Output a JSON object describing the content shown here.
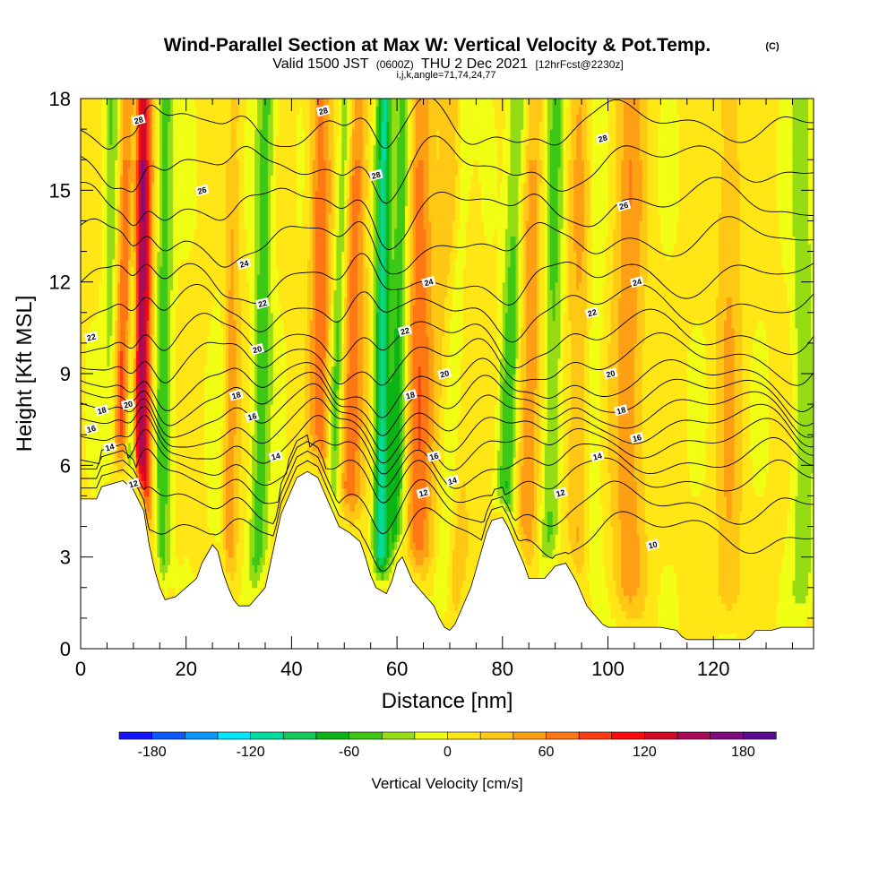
{
  "chart_data": {
    "type": "heatmap",
    "title": "Wind-Parallel Section at Max W: Vertical Velocity & Pot.Temp.",
    "title_mark": "(C)",
    "subtitle_parts": [
      "Valid 1500 JST",
      "(0600Z)",
      "THU 2 Dec 2021",
      "[12hrFcst@2230z]"
    ],
    "subtitle2": "i,j,k,angle=71,74,24,77",
    "xlabel": "Distance [nm]",
    "ylabel": "Height [Kft MSL]",
    "xlim": [
      0,
      139
    ],
    "ylim": [
      0,
      18
    ],
    "x_ticks": [
      0,
      20,
      40,
      60,
      80,
      100,
      120
    ],
    "x_tick_labels": [
      "0",
      "20",
      "40",
      "60",
      "80",
      "100",
      "120"
    ],
    "y_ticks": [
      0,
      3,
      6,
      9,
      12,
      15,
      18
    ],
    "y_tick_labels": [
      "0",
      "3",
      "6",
      "9",
      "12",
      "15",
      "18"
    ],
    "colorbar": {
      "label": "Vertical Velocity [cm/s]",
      "min": -200,
      "max": 200,
      "tick_values": [
        -180,
        -120,
        -60,
        0,
        60,
        120,
        180
      ],
      "tick_labels": [
        "-180",
        "-120",
        "-60",
        "0",
        "60",
        "120",
        "180"
      ],
      "colors": [
        "#1414ff",
        "#0a5aff",
        "#0a96ff",
        "#00e6ff",
        "#00dca0",
        "#14c85a",
        "#0ab414",
        "#3cc814",
        "#96dc14",
        "#f0ff14",
        "#ffe614",
        "#ffc814",
        "#ffa014",
        "#ff7814",
        "#ff3c14",
        "#ff0a0a",
        "#d20a28",
        "#aa0a5a",
        "#800a80",
        "#5a0a8c"
      ]
    },
    "terrain_kft": [
      [
        0,
        4.9
      ],
      [
        3,
        4.9
      ],
      [
        4,
        5.3
      ],
      [
        8,
        5.5
      ],
      [
        10,
        5.2
      ],
      [
        12,
        4.5
      ],
      [
        13,
        3.4
      ],
      [
        14,
        2.6
      ],
      [
        15,
        2.0
      ],
      [
        16,
        1.6
      ],
      [
        18,
        1.7
      ],
      [
        20,
        2.0
      ],
      [
        22,
        2.3
      ],
      [
        23,
        2.8
      ],
      [
        25,
        3.4
      ],
      [
        26,
        3.2
      ],
      [
        27,
        2.5
      ],
      [
        28,
        2.0
      ],
      [
        29,
        1.6
      ],
      [
        30,
        1.4
      ],
      [
        32,
        1.4
      ],
      [
        33,
        1.6
      ],
      [
        35,
        2.0
      ],
      [
        36,
        2.8
      ],
      [
        37,
        3.6
      ],
      [
        38,
        4.4
      ],
      [
        40,
        5.2
      ],
      [
        41,
        5.6
      ],
      [
        43,
        5.8
      ],
      [
        45,
        5.6
      ],
      [
        46,
        5.2
      ],
      [
        47,
        4.8
      ],
      [
        48,
        4.4
      ],
      [
        49,
        4.0
      ],
      [
        51,
        3.8
      ],
      [
        53,
        3.5
      ],
      [
        54,
        3.0
      ],
      [
        55,
        2.4
      ],
      [
        56,
        2.0
      ],
      [
        58,
        1.8
      ],
      [
        59,
        2.2
      ],
      [
        60,
        2.8
      ],
      [
        61,
        3.0
      ],
      [
        62,
        2.6
      ],
      [
        63,
        2.2
      ],
      [
        64,
        2.0
      ],
      [
        65,
        1.8
      ],
      [
        66,
        1.6
      ],
      [
        67,
        1.4
      ],
      [
        68,
        1.0
      ],
      [
        69,
        0.7
      ],
      [
        70,
        0.6
      ],
      [
        71,
        0.8
      ],
      [
        72,
        1.2
      ],
      [
        73,
        1.6
      ],
      [
        74,
        2.0
      ],
      [
        75,
        2.6
      ],
      [
        76,
        3.2
      ],
      [
        77,
        3.8
      ],
      [
        78,
        4.2
      ],
      [
        80,
        4.3
      ],
      [
        81,
        4.0
      ],
      [
        82,
        3.6
      ],
      [
        83,
        3.2
      ],
      [
        84,
        2.8
      ],
      [
        85,
        2.3
      ],
      [
        88,
        2.3
      ],
      [
        89,
        2.5
      ],
      [
        90,
        2.7
      ],
      [
        92,
        2.8
      ],
      [
        93,
        2.5
      ],
      [
        94,
        2.2
      ],
      [
        95,
        1.8
      ],
      [
        96,
        1.4
      ],
      [
        97,
        1.2
      ],
      [
        98,
        1.0
      ],
      [
        99,
        0.8
      ],
      [
        100,
        0.7
      ],
      [
        102,
        0.7
      ],
      [
        110,
        0.7
      ],
      [
        113,
        0.6
      ],
      [
        114,
        0.4
      ],
      [
        115,
        0.3
      ],
      [
        126,
        0.3
      ],
      [
        127,
        0.4
      ],
      [
        128,
        0.6
      ],
      [
        131,
        0.6
      ],
      [
        133,
        0.7
      ],
      [
        139,
        0.7
      ]
    ],
    "updraft_bands": [
      {
        "x_base": 11.5,
        "lean": 0.0,
        "width": 1.8,
        "w": 160
      },
      {
        "x_base": 7.5,
        "lean": 0.18,
        "width": 2.2,
        "w": 90
      },
      {
        "x_base": 27.5,
        "lean": 0.05,
        "width": 2.0,
        "w": 75
      },
      {
        "x_base": 45.5,
        "lean": 0.0,
        "width": 2.0,
        "w": 70
      },
      {
        "x_base": 51.0,
        "lean": 0.12,
        "width": 2.2,
        "w": 70
      },
      {
        "x_base": 64.0,
        "lean": 0.05,
        "width": 2.5,
        "w": 70
      },
      {
        "x_base": 70.5,
        "lean": 0.1,
        "width": 3.0,
        "w": 50
      },
      {
        "x_base": 84.0,
        "lean": 0.08,
        "width": 3.5,
        "w": 55
      },
      {
        "x_base": 95.0,
        "lean": 0.05,
        "width": 3.0,
        "w": 45
      },
      {
        "x_base": 104.0,
        "lean": 0.0,
        "width": 3.0,
        "w": 50
      },
      {
        "x_base": 123.0,
        "lean": 0.0,
        "width": 2.5,
        "w": 35
      }
    ],
    "downdraft_bands": [
      {
        "x_base": 9.5,
        "lean": 0.08,
        "width": 1.2,
        "w": -120
      },
      {
        "x_base": 6.0,
        "lean": 0.0,
        "width": 1.5,
        "w": -50
      },
      {
        "x_base": 15.5,
        "lean": 0.05,
        "width": 1.6,
        "w": -55
      },
      {
        "x_base": 26.5,
        "lean": 0.1,
        "width": 1.6,
        "w": -60
      },
      {
        "x_base": 34.0,
        "lean": 0.1,
        "width": 1.8,
        "w": -55
      },
      {
        "x_base": 48.0,
        "lean": 0.2,
        "width": 1.4,
        "w": -60
      },
      {
        "x_base": 57.0,
        "lean": 0.05,
        "width": 1.4,
        "w": -110
      },
      {
        "x_base": 60.0,
        "lean": 0.1,
        "width": 1.6,
        "w": -70
      },
      {
        "x_base": 70.0,
        "lean": 0.25,
        "width": 2.0,
        "w": -60
      },
      {
        "x_base": 81.0,
        "lean": 0.18,
        "width": 2.0,
        "w": -85
      },
      {
        "x_base": 89.0,
        "lean": 0.1,
        "width": 2.0,
        "w": -55
      },
      {
        "x_base": 97.0,
        "lean": 0.05,
        "width": 2.0,
        "w": -40
      },
      {
        "x_base": 137.0,
        "lean": 0.0,
        "width": 2.0,
        "w": -40
      }
    ],
    "theta_contours": [
      {
        "label": "12",
        "level": 12,
        "base": 3.8
      },
      {
        "label": "14",
        "level": 14,
        "base": 5.6
      },
      {
        "label": "16",
        "level": 16,
        "base": 6.8
      },
      {
        "label": "18",
        "level": 18,
        "base": 7.8
      },
      {
        "label": "20",
        "level": 20,
        "base": 8.8
      },
      {
        "label": "22",
        "level": 22,
        "base": 10.3
      },
      {
        "label": "24",
        "level": 24,
        "base": 12.2
      },
      {
        "label": "26",
        "level": 26,
        "base": 14.6
      },
      {
        "label": "28",
        "level": 28,
        "base": 17.2
      }
    ],
    "contour_labels": [
      {
        "text": "28",
        "x": 11.0,
        "y": 17.3
      },
      {
        "text": "28",
        "x": 46.0,
        "y": 17.6
      },
      {
        "text": "28",
        "x": 56.0,
        "y": 15.5
      },
      {
        "text": "28",
        "x": 99.0,
        "y": 16.7
      },
      {
        "text": "26",
        "x": 23.0,
        "y": 15.0
      },
      {
        "text": "26",
        "x": 103.0,
        "y": 14.5
      },
      {
        "text": "24",
        "x": 31.0,
        "y": 12.6
      },
      {
        "text": "24",
        "x": 66.0,
        "y": 12.0
      },
      {
        "text": "24",
        "x": 105.5,
        "y": 12.0
      },
      {
        "text": "22",
        "x": 2.0,
        "y": 10.2
      },
      {
        "text": "22",
        "x": 34.5,
        "y": 11.3
      },
      {
        "text": "22",
        "x": 61.5,
        "y": 10.4
      },
      {
        "text": "22",
        "x": 97.0,
        "y": 11.0
      },
      {
        "text": "20",
        "x": 33.5,
        "y": 9.8
      },
      {
        "text": "20",
        "x": 69.0,
        "y": 9.0
      },
      {
        "text": "20",
        "x": 100.5,
        "y": 9.0
      },
      {
        "text": "20",
        "x": 9.0,
        "y": 8.0
      },
      {
        "text": "18",
        "x": 4.0,
        "y": 7.8
      },
      {
        "text": "18",
        "x": 29.5,
        "y": 8.3
      },
      {
        "text": "18",
        "x": 62.5,
        "y": 8.3
      },
      {
        "text": "18",
        "x": 102.5,
        "y": 7.8
      },
      {
        "text": "16",
        "x": 2.0,
        "y": 7.2
      },
      {
        "text": "16",
        "x": 32.5,
        "y": 7.6
      },
      {
        "text": "16",
        "x": 67.0,
        "y": 6.3
      },
      {
        "text": "16",
        "x": 105.5,
        "y": 6.9
      },
      {
        "text": "14",
        "x": 5.5,
        "y": 6.6
      },
      {
        "text": "14",
        "x": 37.0,
        "y": 6.3
      },
      {
        "text": "14",
        "x": 70.5,
        "y": 5.5
      },
      {
        "text": "14",
        "x": 98.0,
        "y": 6.3
      },
      {
        "text": "12",
        "x": 10.0,
        "y": 5.4
      },
      {
        "text": "12",
        "x": 65.0,
        "y": 5.1
      },
      {
        "text": "12",
        "x": 91.0,
        "y": 5.1
      },
      {
        "text": "10",
        "x": 108.5,
        "y": 3.4
      }
    ]
  }
}
